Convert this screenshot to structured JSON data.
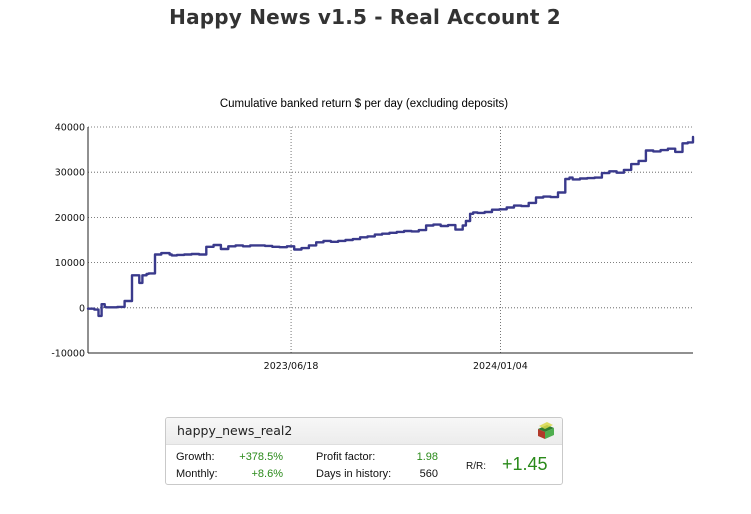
{
  "page": {
    "title": "Happy News v1.5 - Real Account 2"
  },
  "chart_data": {
    "type": "line",
    "title": "Cumulative banked return $ per day (excluding deposits)",
    "xlabel": "",
    "ylabel": "",
    "ylim": [
      -10000,
      40000
    ],
    "yticks": [
      "40000",
      "30000",
      "20000",
      "10000",
      "0",
      "-10000"
    ],
    "ytick_values": [
      40000,
      30000,
      20000,
      10000,
      0,
      -10000
    ],
    "xticks": [
      "2023/06/18",
      "2024/01/04"
    ],
    "xtick_values": [
      "2023-06-18",
      "2024-01-04"
    ],
    "xlim": [
      "2022-12-06",
      "2024-07-06"
    ],
    "grid": true,
    "line_color": "#3a3a8c",
    "series": [
      {
        "x": [
          "2022-12-06",
          "2022-12-12",
          "2022-12-16",
          "2022-12-19",
          "2022-12-22",
          "2022-12-23",
          "2022-12-27",
          "2023-01-03",
          "2023-01-10",
          "2023-01-17",
          "2023-01-24",
          "2023-01-27",
          "2023-01-31",
          "2023-02-02",
          "2023-02-08",
          "2023-02-14",
          "2023-02-22",
          "2023-02-24",
          "2023-03-01",
          "2023-03-08",
          "2023-03-15",
          "2023-03-22",
          "2023-03-29",
          "2023-04-05",
          "2023-04-12",
          "2023-04-19",
          "2023-04-26",
          "2023-05-03",
          "2023-05-10",
          "2023-05-17",
          "2023-05-24",
          "2023-05-31",
          "2023-06-07",
          "2023-06-14",
          "2023-06-21",
          "2023-06-28",
          "2023-07-05",
          "2023-07-12",
          "2023-07-19",
          "2023-07-26",
          "2023-08-02",
          "2023-08-09",
          "2023-08-16",
          "2023-08-23",
          "2023-08-30",
          "2023-09-06",
          "2023-09-13",
          "2023-09-20",
          "2023-09-27",
          "2023-10-04",
          "2023-10-11",
          "2023-10-18",
          "2023-10-25",
          "2023-11-01",
          "2023-11-08",
          "2023-11-15",
          "2023-11-22",
          "2023-11-29",
          "2023-12-02",
          "2023-12-06",
          "2023-12-09",
          "2023-12-13",
          "2023-12-20",
          "2023-12-27",
          "2024-01-03",
          "2024-01-10",
          "2024-01-17",
          "2024-01-24",
          "2024-01-31",
          "2024-02-07",
          "2024-02-14",
          "2024-02-21",
          "2024-02-28",
          "2024-03-06",
          "2024-03-10",
          "2024-03-13",
          "2024-03-20",
          "2024-03-27",
          "2024-04-03",
          "2024-04-10",
          "2024-04-17",
          "2024-04-24",
          "2024-05-01",
          "2024-05-08",
          "2024-05-15",
          "2024-05-22",
          "2024-05-29",
          "2024-06-05",
          "2024-06-12",
          "2024-06-19",
          "2024-06-26",
          "2024-07-01",
          "2024-07-06"
        ],
        "y": [
          -200,
          -400,
          -1800,
          800,
          200,
          100,
          100,
          200,
          1500,
          7200,
          5500,
          7200,
          7500,
          7600,
          11800,
          12100,
          11800,
          11600,
          11700,
          11800,
          11900,
          11800,
          13500,
          13900,
          13000,
          13600,
          13800,
          13600,
          13800,
          13800,
          13700,
          13500,
          13400,
          13600,
          12900,
          13200,
          13800,
          14500,
          14800,
          14600,
          14800,
          15000,
          15200,
          15600,
          15800,
          16200,
          16400,
          16600,
          16800,
          17000,
          16900,
          17200,
          18200,
          18400,
          18100,
          18300,
          17300,
          18200,
          19200,
          20800,
          21100,
          21000,
          21200,
          21700,
          21800,
          22200,
          22600,
          22500,
          23200,
          24400,
          24600,
          24500,
          25500,
          28500,
          28800,
          28400,
          28600,
          28700,
          28800,
          29800,
          30200,
          29900,
          30500,
          31800,
          32500,
          34800,
          34600,
          34900,
          35200,
          34500,
          36400,
          36600,
          37800
        ]
      }
    ]
  },
  "widget": {
    "account": "happy_news_real2",
    "growth_label": "Growth:",
    "growth_value": "+378.5%",
    "monthly_label": "Monthly:",
    "monthly_value": "+8.6%",
    "profit_factor_label": "Profit factor:",
    "profit_factor_value": "1.98",
    "days_label": "Days in history:",
    "days_value": "560",
    "rr_label": "R/R:",
    "rr_value": "+1.45",
    "logo_icon": "stacked-layers-logo-icon",
    "accent_green": "#2a8a1a"
  }
}
